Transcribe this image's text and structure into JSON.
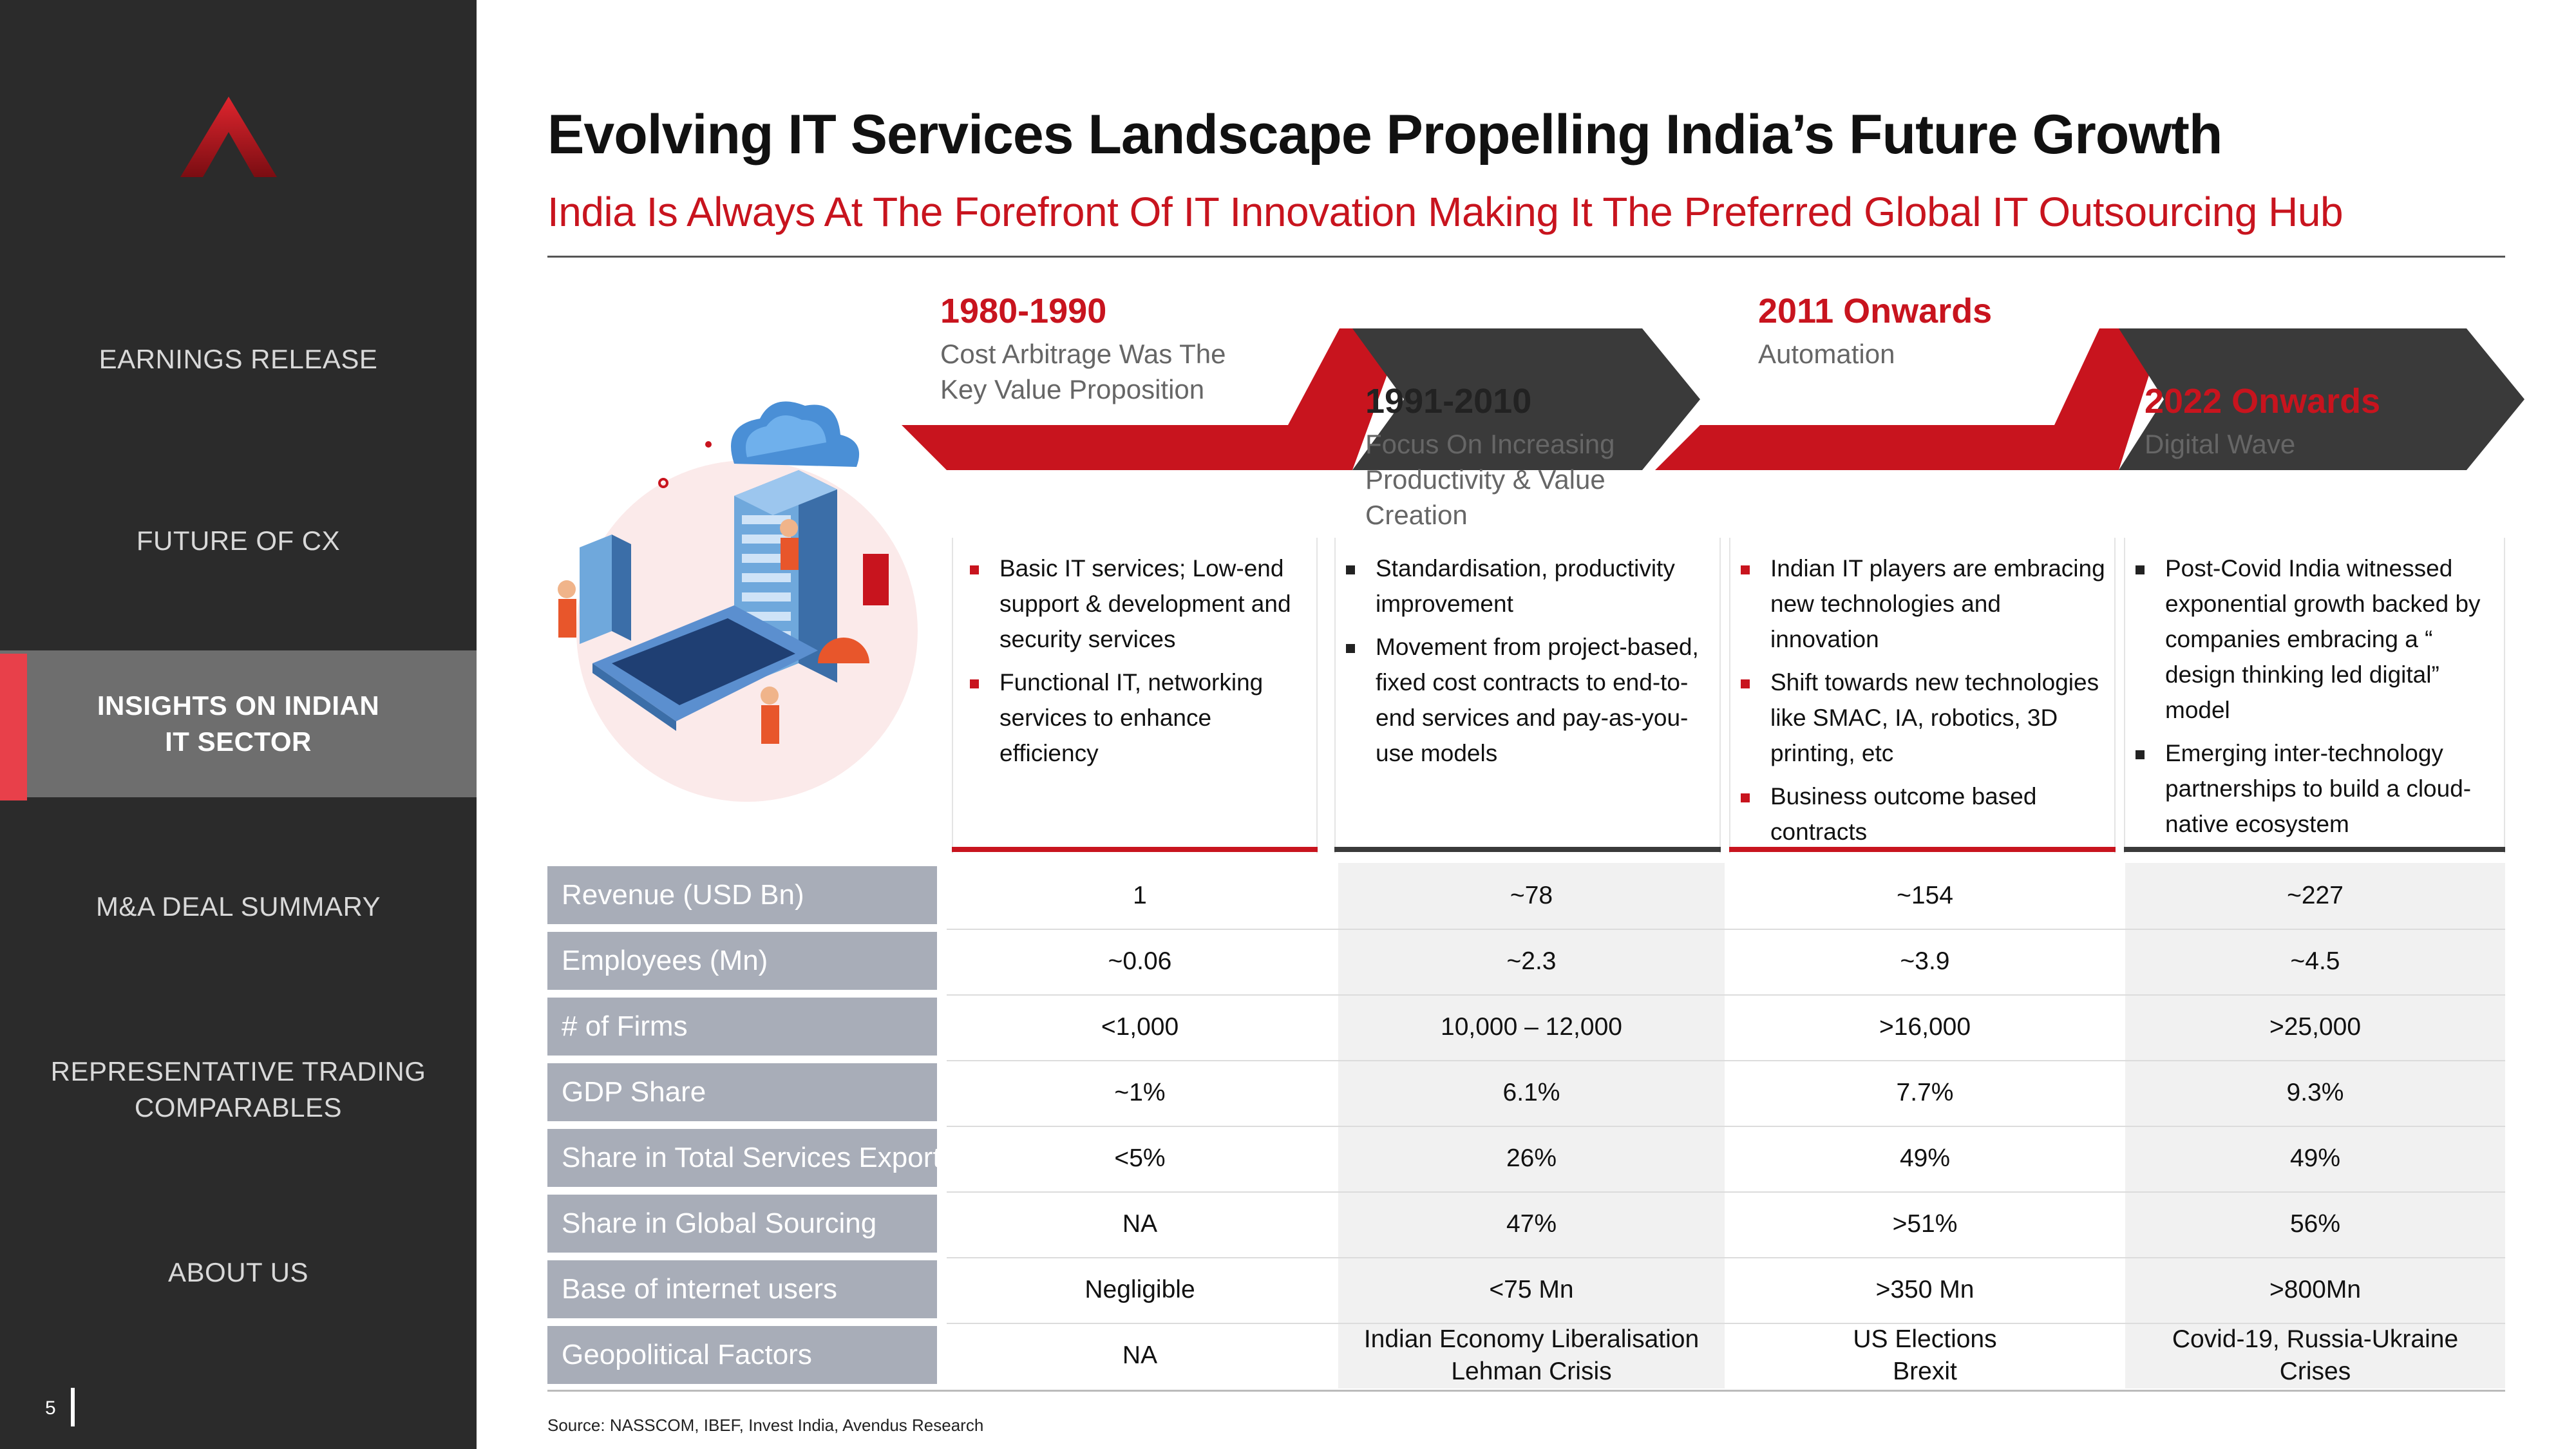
{
  "sidebar": {
    "nav": [
      {
        "label": "EARNINGS RELEASE",
        "active": false
      },
      {
        "label": "FUTURE OF CX",
        "active": false
      },
      {
        "label": "INSIGHTS ON INDIAN\nIT SECTOR",
        "active": true
      },
      {
        "label": "M&A DEAL SUMMARY",
        "active": false
      },
      {
        "label": "REPRESENTATIVE TRADING\nCOMPARABLES",
        "active": false
      },
      {
        "label": "ABOUT US",
        "active": false
      }
    ],
    "page_number": "5"
  },
  "header": {
    "title": "Evolving IT Services Landscape Propelling India’s Future Growth",
    "subtitle": "India Is Always At The Forefront Of IT Innovation Making It The Preferred Global IT Outsourcing Hub"
  },
  "timeline": [
    {
      "years": "1980-1990",
      "description": "Cost Arbitrage Was The\nKey Value Proposition",
      "color": "#c8141e"
    },
    {
      "years": "1991-2010",
      "description": "Focus On Increasing\nProductivity & Value\nCreation",
      "color": "#3a3a3a"
    },
    {
      "years": "2011 Onwards",
      "description": "Automation",
      "color": "#c8141e"
    },
    {
      "years": "2022 Onwards",
      "description": "Digital Wave",
      "color": "#3a3a3a"
    }
  ],
  "columns": [
    {
      "bullets": [
        "Basic IT services; Low-end support & development and security services",
        "Functional IT, networking services to enhance efficiency"
      ]
    },
    {
      "bullets": [
        "Standardisation, productivity improvement",
        "Movement from project-based, fixed cost contracts to end-to-end services and pay-as-you-use models"
      ]
    },
    {
      "bullets": [
        "Indian IT players are embracing new technologies and innovation",
        "Shift towards new technologies like SMAC, IA, robotics, 3D printing, etc",
        "Business outcome based contracts"
      ]
    },
    {
      "bullets": [
        "Post-Covid India witnessed exponential growth backed by companies embracing a “ design thinking led digital” model",
        "Emerging inter-technology partnerships to build a cloud-native ecosystem"
      ]
    }
  ],
  "table": {
    "rows": [
      {
        "label": "Revenue (USD Bn)",
        "values": [
          "1",
          "~78",
          "~154",
          "~227"
        ]
      },
      {
        "label": "Employees (Mn)",
        "values": [
          "~0.06",
          "~2.3",
          "~3.9",
          "~4.5"
        ]
      },
      {
        "label": "# of Firms",
        "values": [
          "<1,000",
          "10,000 – 12,000",
          ">16,000",
          ">25,000"
        ]
      },
      {
        "label": "GDP Share",
        "values": [
          "~1%",
          "6.1%",
          "7.7%",
          "9.3%"
        ]
      },
      {
        "label": "Share in Total Services Export",
        "values": [
          "<5%",
          "26%",
          "49%",
          "49%"
        ]
      },
      {
        "label": "Share in Global Sourcing",
        "values": [
          "NA",
          "47%",
          ">51%",
          "56%"
        ]
      },
      {
        "label": "Base of internet users",
        "values": [
          "Negligible",
          "<75 Mn",
          ">350 Mn",
          ">800Mn"
        ]
      },
      {
        "label": "Geopolitical Factors",
        "values": [
          "NA",
          "Indian Economy Liberalisation\nLehman Crisis",
          "US Elections\nBrexit",
          "Covid-19, Russia-Ukraine\nCrises"
        ]
      }
    ]
  },
  "source": "Source: NASSCOM, IBEF, Invest India, Avendus Research",
  "colors": {
    "accent_red": "#c8141e",
    "dark": "#3a3a3a",
    "sidebar_bg": "#2b2b2b",
    "label_bg": "#a8adb8",
    "active_marker": "#e8404a"
  }
}
